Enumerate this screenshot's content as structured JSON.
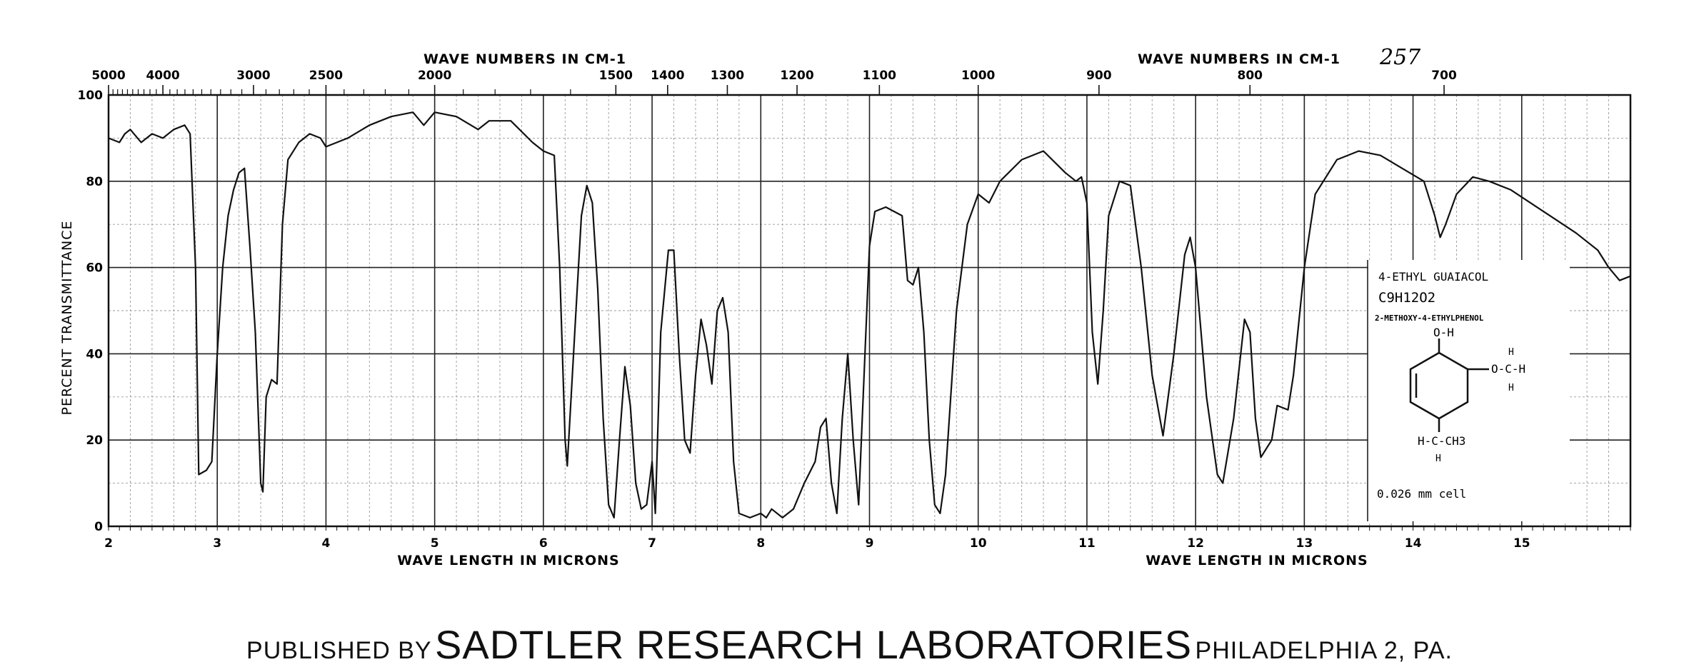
{
  "page_note": "257",
  "axes": {
    "top_title_left": "WAVE NUMBERS IN CM-1",
    "top_title_right": "WAVE NUMBERS IN CM-1",
    "bottom_title_left": "WAVE LENGTH IN MICRONS",
    "bottom_title_right": "WAVE LENGTH IN MICRONS",
    "y_title": "PERCENT TRANSMITTANCE"
  },
  "compound": {
    "name": "4-ETHYL GUAIACOL",
    "formula": "C9H12O2",
    "synonym": "2-METHOXY-4-ETHYLPHENOL",
    "cell": "0.026 mm cell",
    "struct_labels": {
      "oh": "O-H",
      "ome": "O-C-H",
      "h_top": "H",
      "h_bottom": "H",
      "ethyl": "H-C-CH3",
      "ethyl_h": "H"
    }
  },
  "footer": {
    "published_by": "PUBLISHED BY",
    "lab": "SADTLER RESEARCH LABORATORIES",
    "location": "PHILADELPHIA 2, PA."
  },
  "chart_data": {
    "type": "line",
    "xlabel": "WAVE LENGTH IN MICRONS",
    "ylabel": "PERCENT TRANSMITTANCE",
    "x2label": "WAVE NUMBERS IN CM-1",
    "xlim": [
      2,
      16
    ],
    "ylim": [
      0,
      100
    ],
    "grid": true,
    "x_ticks": [
      2,
      3,
      4,
      5,
      6,
      7,
      8,
      9,
      10,
      11,
      12,
      13,
      14,
      15
    ],
    "y_ticks": [
      0,
      20,
      40,
      60,
      80,
      100
    ],
    "top_ticks_cm1": [
      5000,
      4000,
      3000,
      2500,
      2000,
      1500,
      1400,
      1300,
      1200,
      1100,
      1000,
      900,
      800,
      700
    ],
    "series": [
      {
        "values": [
          [
            2.0,
            90
          ],
          [
            2.1,
            89
          ],
          [
            2.15,
            91
          ],
          [
            2.2,
            92
          ],
          [
            2.3,
            89
          ],
          [
            2.4,
            91
          ],
          [
            2.5,
            90
          ],
          [
            2.6,
            92
          ],
          [
            2.7,
            93
          ],
          [
            2.75,
            91
          ],
          [
            2.8,
            60
          ],
          [
            2.83,
            12
          ],
          [
            2.9,
            13
          ],
          [
            2.95,
            15
          ],
          [
            3.0,
            40
          ],
          [
            3.05,
            60
          ],
          [
            3.1,
            72
          ],
          [
            3.15,
            78
          ],
          [
            3.2,
            82
          ],
          [
            3.25,
            83
          ],
          [
            3.3,
            65
          ],
          [
            3.35,
            45
          ],
          [
            3.4,
            10
          ],
          [
            3.42,
            8
          ],
          [
            3.45,
            30
          ],
          [
            3.5,
            34
          ],
          [
            3.55,
            33
          ],
          [
            3.6,
            70
          ],
          [
            3.65,
            85
          ],
          [
            3.75,
            89
          ],
          [
            3.85,
            91
          ],
          [
            3.95,
            90
          ],
          [
            4.0,
            88
          ],
          [
            4.2,
            90
          ],
          [
            4.4,
            93
          ],
          [
            4.6,
            95
          ],
          [
            4.8,
            96
          ],
          [
            4.9,
            93
          ],
          [
            5.0,
            96
          ],
          [
            5.2,
            95
          ],
          [
            5.4,
            92
          ],
          [
            5.5,
            94
          ],
          [
            5.7,
            94
          ],
          [
            5.9,
            89
          ],
          [
            6.0,
            87
          ],
          [
            6.1,
            86
          ],
          [
            6.15,
            60
          ],
          [
            6.2,
            20
          ],
          [
            6.22,
            14
          ],
          [
            6.3,
            50
          ],
          [
            6.35,
            72
          ],
          [
            6.4,
            79
          ],
          [
            6.45,
            75
          ],
          [
            6.5,
            55
          ],
          [
            6.55,
            25
          ],
          [
            6.6,
            5
          ],
          [
            6.65,
            2
          ],
          [
            6.7,
            20
          ],
          [
            6.75,
            37
          ],
          [
            6.8,
            28
          ],
          [
            6.85,
            10
          ],
          [
            6.9,
            4
          ],
          [
            6.95,
            5
          ],
          [
            7.0,
            15
          ],
          [
            7.03,
            3
          ],
          [
            7.08,
            45
          ],
          [
            7.15,
            64
          ],
          [
            7.2,
            64
          ],
          [
            7.25,
            40
          ],
          [
            7.3,
            20
          ],
          [
            7.35,
            17
          ],
          [
            7.4,
            35
          ],
          [
            7.45,
            48
          ],
          [
            7.5,
            42
          ],
          [
            7.55,
            33
          ],
          [
            7.6,
            50
          ],
          [
            7.65,
            53
          ],
          [
            7.7,
            45
          ],
          [
            7.75,
            15
          ],
          [
            7.8,
            3
          ],
          [
            7.9,
            2
          ],
          [
            8.0,
            3
          ],
          [
            8.05,
            2
          ],
          [
            8.1,
            4
          ],
          [
            8.2,
            2
          ],
          [
            8.3,
            4
          ],
          [
            8.4,
            10
          ],
          [
            8.5,
            15
          ],
          [
            8.55,
            23
          ],
          [
            8.6,
            25
          ],
          [
            8.65,
            10
          ],
          [
            8.7,
            3
          ],
          [
            8.75,
            25
          ],
          [
            8.8,
            40
          ],
          [
            8.85,
            20
          ],
          [
            8.9,
            5
          ],
          [
            8.95,
            35
          ],
          [
            9.0,
            65
          ],
          [
            9.05,
            73
          ],
          [
            9.15,
            74
          ],
          [
            9.3,
            72
          ],
          [
            9.35,
            57
          ],
          [
            9.4,
            56
          ],
          [
            9.45,
            60
          ],
          [
            9.5,
            45
          ],
          [
            9.55,
            20
          ],
          [
            9.6,
            5
          ],
          [
            9.65,
            3
          ],
          [
            9.7,
            12
          ],
          [
            9.8,
            50
          ],
          [
            9.9,
            70
          ],
          [
            10.0,
            77
          ],
          [
            10.1,
            75
          ],
          [
            10.2,
            80
          ],
          [
            10.4,
            85
          ],
          [
            10.6,
            87
          ],
          [
            10.8,
            82
          ],
          [
            10.9,
            80
          ],
          [
            10.95,
            81
          ],
          [
            11.0,
            75
          ],
          [
            11.05,
            45
          ],
          [
            11.1,
            33
          ],
          [
            11.15,
            50
          ],
          [
            11.2,
            72
          ],
          [
            11.3,
            80
          ],
          [
            11.4,
            79
          ],
          [
            11.5,
            60
          ],
          [
            11.6,
            35
          ],
          [
            11.7,
            21
          ],
          [
            11.8,
            40
          ],
          [
            11.9,
            63
          ],
          [
            11.95,
            67
          ],
          [
            12.0,
            60
          ],
          [
            12.1,
            30
          ],
          [
            12.2,
            12
          ],
          [
            12.25,
            10
          ],
          [
            12.35,
            25
          ],
          [
            12.45,
            48
          ],
          [
            12.5,
            45
          ],
          [
            12.55,
            25
          ],
          [
            12.6,
            16
          ],
          [
            12.7,
            20
          ],
          [
            12.75,
            28
          ],
          [
            12.85,
            27
          ],
          [
            12.9,
            35
          ],
          [
            13.0,
            60
          ],
          [
            13.1,
            77
          ],
          [
            13.3,
            85
          ],
          [
            13.5,
            87
          ],
          [
            13.7,
            86
          ],
          [
            13.9,
            83
          ],
          [
            14.1,
            80
          ],
          [
            14.2,
            72
          ],
          [
            14.25,
            67
          ],
          [
            14.3,
            70
          ],
          [
            14.4,
            77
          ],
          [
            14.55,
            81
          ],
          [
            14.7,
            80
          ],
          [
            14.9,
            78
          ],
          [
            15.2,
            73
          ],
          [
            15.5,
            68
          ],
          [
            15.7,
            64
          ],
          [
            15.8,
            60
          ],
          [
            15.9,
            57
          ],
          [
            16.0,
            58
          ]
        ]
      }
    ]
  }
}
